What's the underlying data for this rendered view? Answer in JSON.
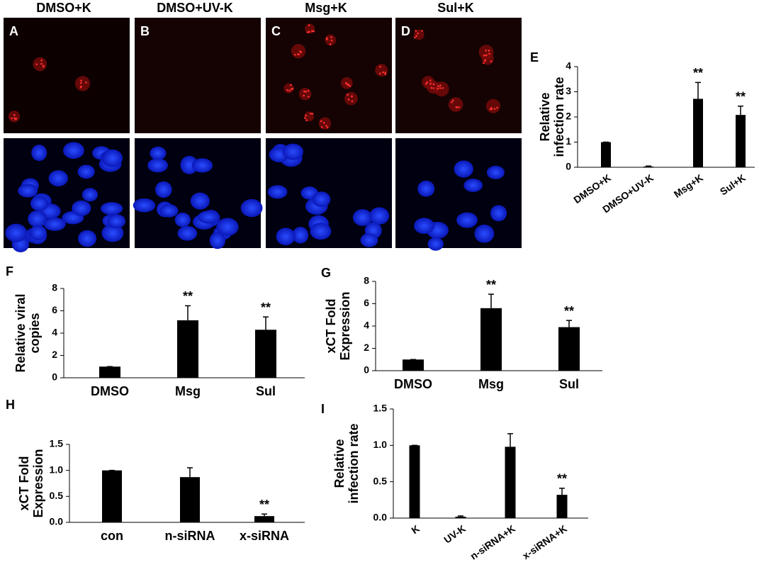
{
  "figure": {
    "column_titles": [
      "DMSO+K",
      "DMSO+UV-K",
      "Msg+K",
      "Sul+K"
    ],
    "panel_labels": [
      "A",
      "B",
      "C",
      "D"
    ]
  },
  "chart_data": [
    {
      "type": "bar",
      "label": "E",
      "ylabel": [
        "Relative",
        "infection rate"
      ],
      "categories": [
        "DMSO+K",
        "DMSO+UV-K",
        "Msg+K",
        "Sul+K"
      ],
      "values": [
        1,
        0.03,
        2.72,
        2.08
      ],
      "errors": [
        0,
        0.02,
        0.65,
        0.35
      ],
      "marks": [
        null,
        null,
        "**",
        "**"
      ],
      "color": "#000000",
      "ylim": [
        0,
        4
      ],
      "yticks": [
        0,
        1,
        2,
        3,
        4
      ]
    },
    {
      "type": "bar",
      "label": "F",
      "ylabel": [
        "Relative viral",
        "copies"
      ],
      "categories": [
        "DMSO",
        "Msg",
        "Sul"
      ],
      "values": [
        1,
        5.15,
        4.3
      ],
      "errors": [
        0,
        1.3,
        1.15
      ],
      "marks": [
        null,
        "**",
        "**"
      ],
      "color": "#000000",
      "ylim": [
        0,
        8
      ],
      "yticks": [
        0,
        2,
        4,
        6,
        8
      ]
    },
    {
      "type": "bar",
      "label": "G",
      "ylabel": [
        "xCT Fold",
        "Expression"
      ],
      "categories": [
        "DMSO",
        "Msg",
        "Sul"
      ],
      "values": [
        1,
        5.6,
        3.9
      ],
      "errors": [
        0,
        1.25,
        0.6
      ],
      "marks": [
        null,
        "**",
        "**"
      ],
      "color": "#000000",
      "ylim": [
        0,
        8
      ],
      "yticks": [
        0,
        2,
        4,
        6,
        8
      ]
    },
    {
      "type": "bar",
      "label": "H",
      "ylabel": [
        "xCT Fold",
        "Expression"
      ],
      "categories": [
        "con",
        "n-siRNA",
        "x-siRNA"
      ],
      "values": [
        1,
        0.87,
        0.12
      ],
      "errors": [
        0,
        0.18,
        0.04
      ],
      "marks": [
        null,
        null,
        "**"
      ],
      "color": "#000000",
      "ylim": [
        0,
        1.5
      ],
      "yticks": [
        {
          "value": 0,
          "label": "0.0"
        },
        0.5,
        {
          "value": 1,
          "label": "1.0"
        },
        1.5
      ]
    },
    {
      "type": "bar",
      "label": "I",
      "ylabel": [
        "Relative",
        "infection rate"
      ],
      "categories": [
        "K",
        "UV-K",
        "n-siRNA+K",
        "x-siRNA+K"
      ],
      "values": [
        1,
        0.02,
        0.98,
        0.32
      ],
      "errors": [
        0,
        0.01,
        0.18,
        0.09
      ],
      "marks": [
        null,
        null,
        null,
        "**"
      ],
      "color": "#000000",
      "ylim": [
        0,
        1.5
      ],
      "yticks": [
        {
          "value": 0,
          "label": "0.0"
        },
        0.5,
        {
          "value": 1,
          "label": "1.0"
        },
        1.5
      ]
    }
  ]
}
